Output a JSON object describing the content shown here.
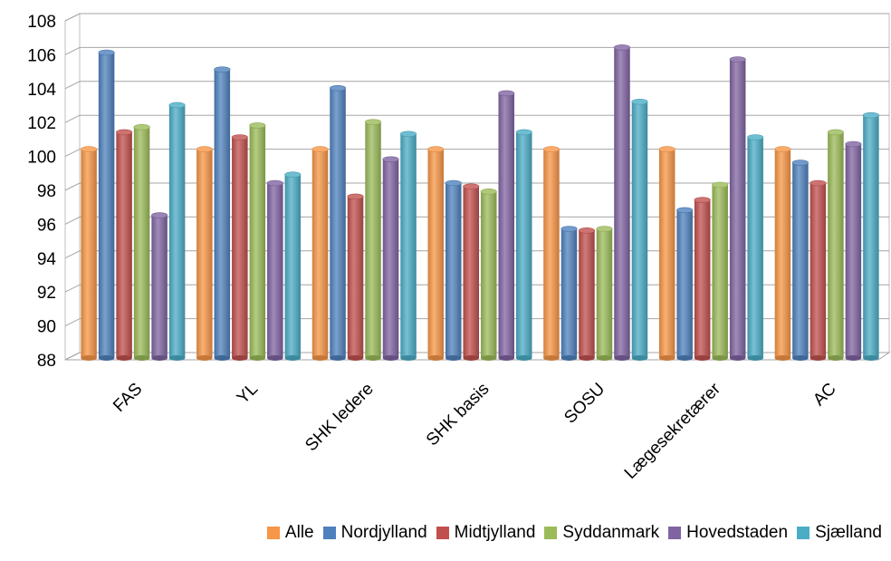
{
  "chart_data": {
    "type": "bar",
    "categories": [
      "FAS",
      "YL",
      "SHK ledere",
      "SHK basis",
      "SOSU",
      "Lægesekretærer",
      "AC"
    ],
    "series": [
      {
        "name": "Alle",
        "color": "#F79646",
        "values": [
          100,
          100,
          100,
          100,
          100,
          100,
          100
        ]
      },
      {
        "name": "Nordjylland",
        "color": "#4F81BD",
        "values": [
          105.7,
          104.7,
          103.6,
          98.0,
          95.3,
          96.4,
          99.2
        ]
      },
      {
        "name": "Midtjylland",
        "color": "#C0504D",
        "values": [
          101.0,
          100.7,
          97.2,
          97.8,
          95.2,
          97.0,
          98.0
        ]
      },
      {
        "name": "Syddanmark",
        "color": "#9BBB59",
        "values": [
          101.3,
          101.4,
          101.6,
          97.5,
          95.3,
          97.9,
          101.0
        ]
      },
      {
        "name": "Hovedstaden",
        "color": "#8064A2",
        "values": [
          96.1,
          98.0,
          99.4,
          103.3,
          106.0,
          105.3,
          100.3
        ]
      },
      {
        "name": "Sjælland",
        "color": "#4BACC6",
        "values": [
          102.6,
          98.5,
          100.9,
          101.0,
          102.8,
          100.7,
          102.0
        ]
      }
    ],
    "xlabel": "",
    "ylabel": "",
    "ylim": [
      88,
      108
    ],
    "yticks": [
      88,
      90,
      92,
      94,
      96,
      98,
      100,
      102,
      104,
      106,
      108
    ],
    "grid": true,
    "legend": "bottom"
  }
}
